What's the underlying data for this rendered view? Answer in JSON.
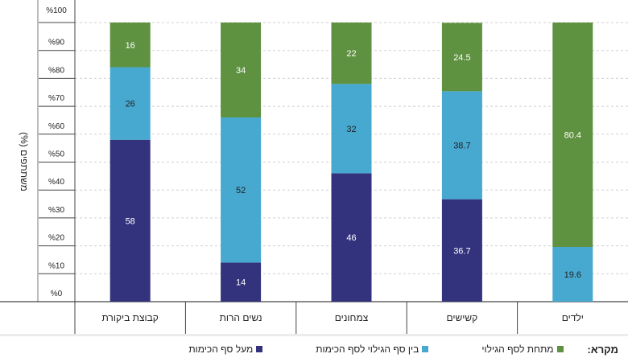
{
  "chart_data": {
    "type": "bar",
    "stacked": true,
    "ylabel": "משתתפים (%)",
    "ylim": [
      0,
      100
    ],
    "yticks": [
      "%0",
      "%10",
      "%20",
      "%30",
      "%40",
      "%50",
      "%60",
      "%70",
      "%80",
      "%90",
      "%100"
    ],
    "grid": true,
    "categories": [
      "ילדים",
      "קשישים",
      "צמחונים",
      "נשים הרות",
      "קבוצת ביקורת"
    ],
    "series": [
      {
        "name": "מעל סף הכימות",
        "color": "#33337d",
        "labelColor": "#ffffff",
        "values": [
          0,
          36.7,
          46,
          14,
          58
        ]
      },
      {
        "name": "בין סף הגילוי לסף הכימות",
        "color": "#47a9cf",
        "labelColor": "#222222",
        "values": [
          19.6,
          38.7,
          32,
          52,
          26
        ]
      },
      {
        "name": "מתחת לסף הגילוי",
        "color": "#5e9140",
        "labelColor": "#ffffff",
        "values": [
          80.4,
          24.5,
          22,
          34,
          16
        ]
      }
    ],
    "data_labels": [
      [
        "",
        "36.7",
        "46",
        "14",
        "58"
      ],
      [
        "19.6",
        "38.7",
        "32",
        "52",
        "26"
      ],
      [
        "80.4",
        "24.5",
        "22",
        "34",
        "16"
      ]
    ],
    "legend_title": "מקרא:",
    "legend_position": "bottom"
  }
}
